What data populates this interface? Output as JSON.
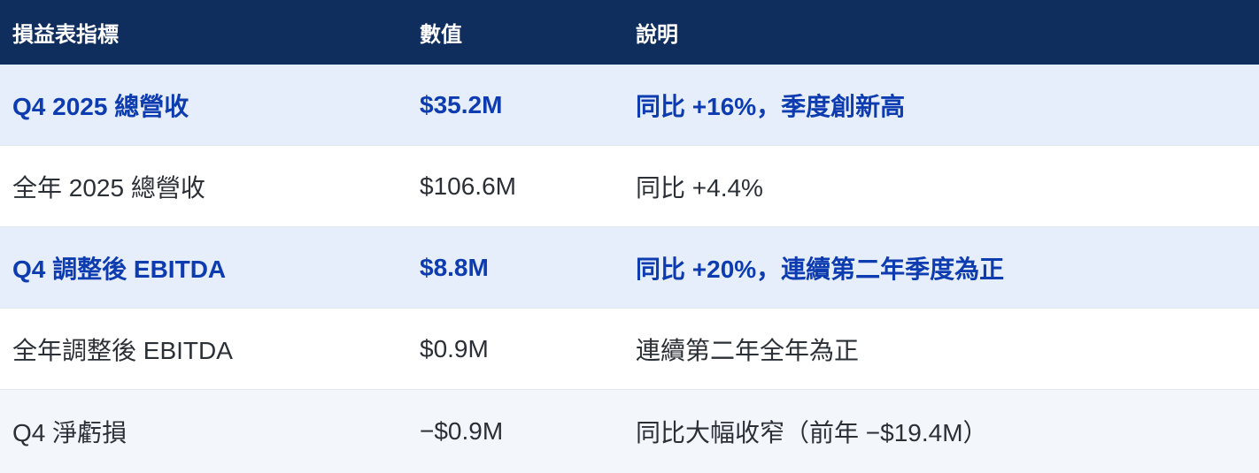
{
  "table": {
    "headers": [
      "損益表指標",
      "數值",
      "說明"
    ],
    "rows": [
      {
        "metric": "Q4 2025 總營收",
        "value": "$35.2M",
        "note": "同比 +16%，季度創新高",
        "highlight": true
      },
      {
        "metric": "全年 2025 總營收",
        "value": "$106.6M",
        "note": "同比 +4.4%",
        "highlight": false
      },
      {
        "metric": "Q4 調整後 EBITDA",
        "value": "$8.8M",
        "note": "同比 +20%，連續第二年季度為正",
        "highlight": true
      },
      {
        "metric": "全年調整後 EBITDA",
        "value": "$0.9M",
        "note": "連續第二年全年為正",
        "highlight": false
      },
      {
        "metric": "Q4 淨虧損",
        "value": "−$0.9M",
        "note": "同比大幅收窄（前年 −$19.4M）",
        "highlight": false
      }
    ]
  },
  "colors": {
    "header_bg": "#0f2e5e",
    "highlight_bg": "#e6eefb",
    "highlight_text": "#0d3bb0",
    "alt_bg": "#f3f7fc",
    "text": "#2b2f36"
  }
}
